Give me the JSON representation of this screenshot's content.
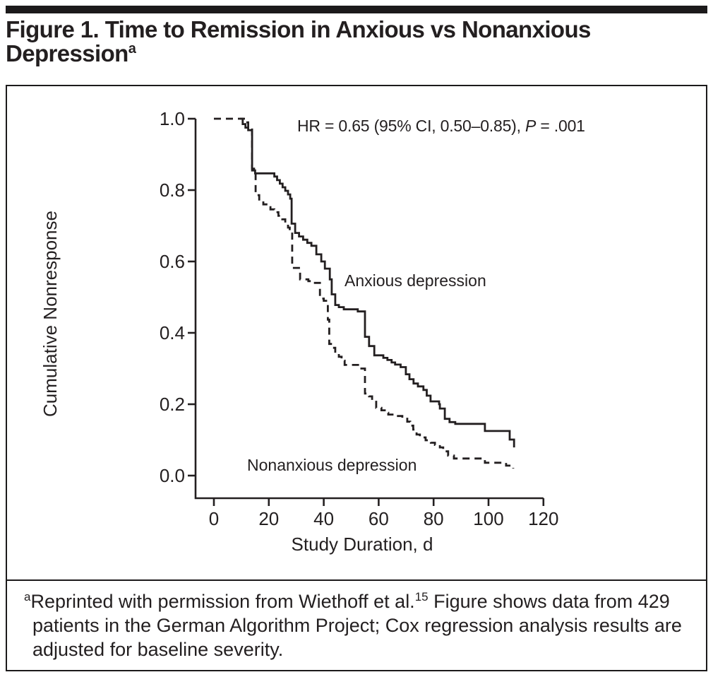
{
  "figure": {
    "title_line1": "Figure 1. Time to Remission in Anxious vs Nonanxious",
    "title_line2": "Depression",
    "title_superscript": "a"
  },
  "annotation": {
    "prefix": "HR = 0.65 (95% CI, 0.50–0.85), ",
    "p_symbol": "P",
    "suffix": " = .001"
  },
  "footnote": {
    "marker": "a",
    "text_before_ref": "Reprinted with permission from Wiethoff et al.",
    "reference_superscript": "15",
    "text_after_ref": " Figure shows data from 429 patients in the German Algorithm Project; Cox regression analysis results are adjusted for baseline severity."
  },
  "chart_data": {
    "type": "line",
    "subtype": "kaplan-meier-step",
    "title": "Time to Remission in Anxious vs Nonanxious Depression",
    "xlabel": "Study Duration, d",
    "ylabel": "Cumulative Nonresponse",
    "xlim": [
      0,
      120
    ],
    "ylim": [
      0.0,
      1.0
    ],
    "x_ticks": [
      0,
      20,
      40,
      60,
      80,
      100,
      120
    ],
    "y_ticks": [
      0.0,
      0.2,
      0.4,
      0.6,
      0.8,
      1.0
    ],
    "grid": false,
    "legend_position": "inline-labels",
    "annotation": "HR = 0.65 (95% CI, 0.50–0.85), P = .001",
    "line_color": "#231f20",
    "series": [
      {
        "name": "Anxious depression",
        "line_style": "solid",
        "step": "post",
        "points": [
          [
            9.5,
            1.0
          ],
          [
            10.5,
            0.985
          ],
          [
            11.5,
            0.975
          ],
          [
            12.5,
            0.968
          ],
          [
            13.9,
            0.855
          ],
          [
            15.0,
            0.847
          ],
          [
            22.0,
            0.838
          ],
          [
            23.0,
            0.828
          ],
          [
            24.0,
            0.818
          ],
          [
            25.0,
            0.808
          ],
          [
            26.0,
            0.798
          ],
          [
            27.0,
            0.788
          ],
          [
            27.8,
            0.776
          ],
          [
            28.3,
            0.706
          ],
          [
            29.6,
            0.68
          ],
          [
            31.0,
            0.67
          ],
          [
            32.5,
            0.661
          ],
          [
            34.0,
            0.652
          ],
          [
            35.5,
            0.644
          ],
          [
            37.3,
            0.62
          ],
          [
            39.1,
            0.6
          ],
          [
            40.4,
            0.58
          ],
          [
            42.2,
            0.55
          ],
          [
            42.9,
            0.508
          ],
          [
            44.2,
            0.478
          ],
          [
            45.5,
            0.472
          ],
          [
            47.3,
            0.466
          ],
          [
            52.4,
            0.46
          ],
          [
            55.0,
            0.389
          ],
          [
            56.5,
            0.363
          ],
          [
            58.4,
            0.337
          ],
          [
            61.7,
            0.33
          ],
          [
            63.2,
            0.324
          ],
          [
            64.7,
            0.317
          ],
          [
            66.0,
            0.311
          ],
          [
            68.0,
            0.304
          ],
          [
            69.9,
            0.284
          ],
          [
            71.2,
            0.27
          ],
          [
            72.7,
            0.258
          ],
          [
            74.3,
            0.25
          ],
          [
            76.3,
            0.24
          ],
          [
            77.5,
            0.224
          ],
          [
            78.9,
            0.208
          ],
          [
            82.0,
            0.2
          ],
          [
            82.3,
            0.188
          ],
          [
            84.1,
            0.159
          ],
          [
            85.8,
            0.15
          ],
          [
            87.9,
            0.145
          ],
          [
            98.7,
            0.125
          ],
          [
            107.7,
            0.101
          ],
          [
            109.3,
            0.079
          ]
        ]
      },
      {
        "name": "Nonanxious depression",
        "line_style": "dashed",
        "step": "post",
        "points": [
          [
            0,
            1.0
          ],
          [
            11.5,
            0.99
          ],
          [
            12.5,
            0.975
          ],
          [
            13.9,
            0.86
          ],
          [
            15.2,
            0.786
          ],
          [
            16.5,
            0.77
          ],
          [
            18.0,
            0.76
          ],
          [
            19.5,
            0.752
          ],
          [
            20.6,
            0.746
          ],
          [
            22.0,
            0.738
          ],
          [
            23.5,
            0.728
          ],
          [
            24.9,
            0.718
          ],
          [
            26.0,
            0.706
          ],
          [
            27.0,
            0.695
          ],
          [
            27.6,
            0.683
          ],
          [
            28.5,
            0.582
          ],
          [
            31.4,
            0.55
          ],
          [
            34.4,
            0.545
          ],
          [
            36.0,
            0.54
          ],
          [
            38.6,
            0.496
          ],
          [
            40.0,
            0.49
          ],
          [
            41.5,
            0.437
          ],
          [
            42.0,
            0.369
          ],
          [
            43.0,
            0.358
          ],
          [
            44.2,
            0.343
          ],
          [
            45.5,
            0.333
          ],
          [
            46.5,
            0.322
          ],
          [
            47.6,
            0.31
          ],
          [
            53.7,
            0.3
          ],
          [
            55.0,
            0.23
          ],
          [
            56.5,
            0.222
          ],
          [
            57.6,
            0.21
          ],
          [
            59.1,
            0.19
          ],
          [
            61.0,
            0.183
          ],
          [
            62.2,
            0.176
          ],
          [
            63.5,
            0.171
          ],
          [
            66.0,
            0.167
          ],
          [
            68.6,
            0.165
          ],
          [
            70.4,
            0.151
          ],
          [
            71.5,
            0.14
          ],
          [
            72.6,
            0.129
          ],
          [
            73.8,
            0.115
          ],
          [
            75.0,
            0.107
          ],
          [
            77.1,
            0.099
          ],
          [
            79.0,
            0.092
          ],
          [
            80.5,
            0.086
          ],
          [
            82.3,
            0.079
          ],
          [
            83.5,
            0.068
          ],
          [
            85.3,
            0.056
          ],
          [
            87.4,
            0.048
          ],
          [
            98.7,
            0.036
          ],
          [
            106.4,
            0.028
          ],
          [
            109.0,
            0.02
          ]
        ]
      }
    ]
  }
}
